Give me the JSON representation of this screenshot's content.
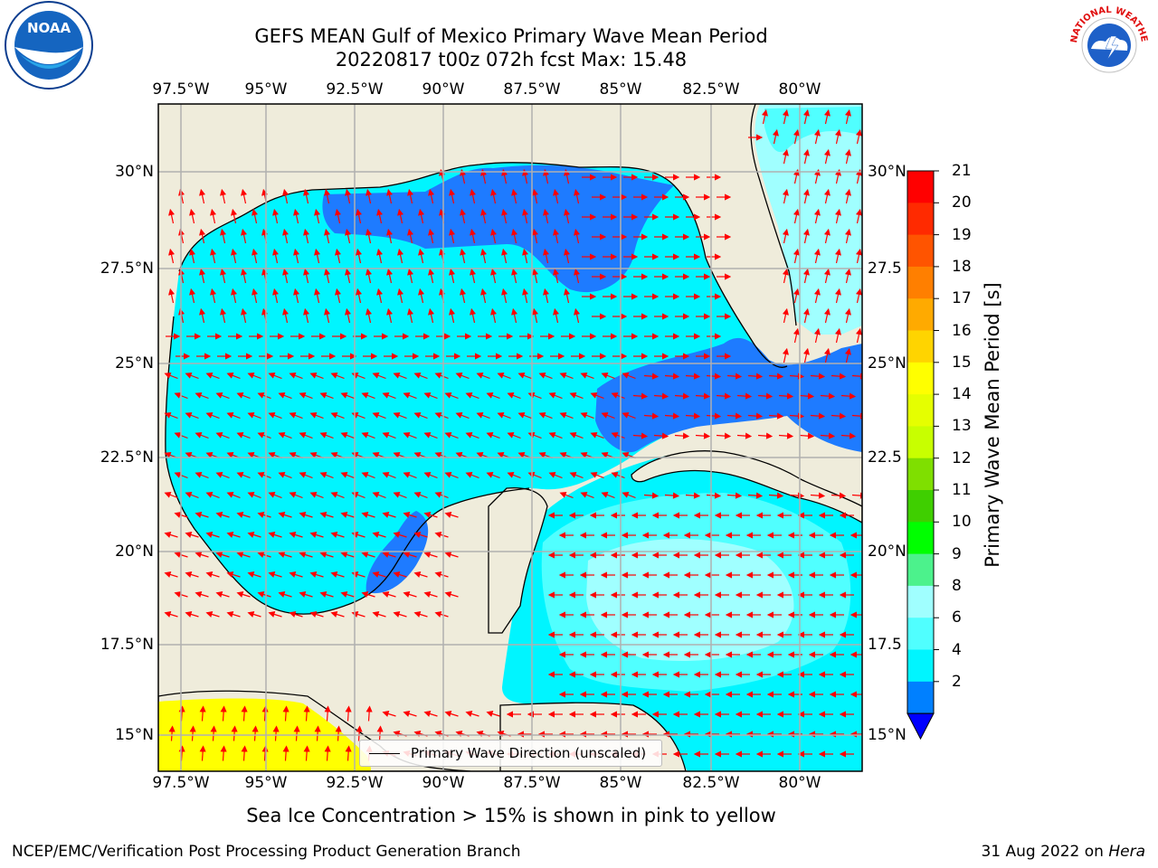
{
  "title_line1": "GEFS MEAN Gulf of Mexico Primary Wave Mean Period",
  "title_line2": "20220817 t00z 072h fcst   Max: 15.48",
  "lon_ticks": [
    "97.5°W",
    "95°W",
    "92.5°W",
    "90°W",
    "87.5°W",
    "85°W",
    "82.5°W",
    "80°W"
  ],
  "lat_ticks": [
    "30°N",
    "27.5°N",
    "25°N",
    "22.5°N",
    "20°N",
    "17.5°N",
    "15°N"
  ],
  "lat_ticks_right": [
    "30°N",
    "27.5",
    "25°N",
    "22.5",
    "20°N",
    "17.5",
    "15°N"
  ],
  "colorbar": {
    "label": "Primary Wave Mean Period [s]",
    "ticks": [
      "21",
      "20",
      "19",
      "18",
      "17",
      "16",
      "15",
      "14",
      "13",
      "12",
      "11",
      "10",
      "9",
      "8",
      "6",
      "4",
      "2"
    ],
    "colors": [
      "#ff0000",
      "#ff2a00",
      "#ff5400",
      "#ff7f00",
      "#ffaa00",
      "#ffd400",
      "#ffff00",
      "#e5ff00",
      "#c8ff00",
      "#7fdf00",
      "#3fcf00",
      "#00ff00",
      "#4cf28c",
      "#a0ffff",
      "#50ffff",
      "#00f5ff",
      "#0080ff"
    ],
    "under_color": "#0000ff"
  },
  "colors": {
    "land": "#efecdb",
    "sea": "#00f5ff",
    "sea_light": "#50ffff",
    "sea_pale": "#a0ffff",
    "sea_deep": "#1e7bff",
    "sea_dark": "#0000ee",
    "yellow": "#ffff00",
    "arrow": "#ff0000",
    "grid": "#b0b0b0"
  },
  "legend_label": "Primary Wave Direction (unscaled)",
  "note": "Sea Ice Concentration > 15% is shown in pink to yellow",
  "footer_left": "NCEP/EMC/Verification Post Processing Product Generation Branch",
  "footer_right_date": "31 Aug 2022 on ",
  "footer_right_host": "Hera",
  "logos": {
    "noaa_text": "NOAA",
    "nws_text": "NATIONAL WEATHER SERVICE"
  }
}
